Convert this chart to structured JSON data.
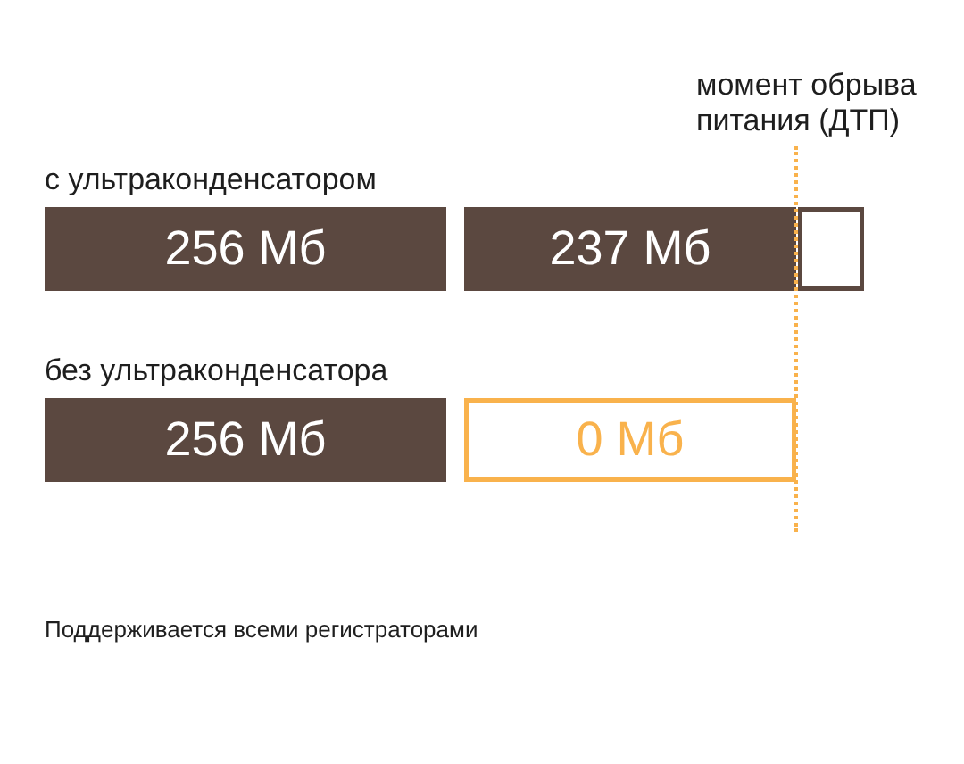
{
  "chart_data": {
    "type": "other",
    "categories": [
      "с ультраконденсатором",
      "без ультраконденсатора"
    ],
    "series": [
      {
        "color": "#5b4840",
        "values": [
          256,
          256
        ],
        "value_labels": [
          "256 Мб",
          "256 Мб"
        ]
      },
      {
        "colors": [
          "#5b4840",
          "#f9b24c"
        ],
        "values": [
          237,
          0
        ],
        "value_labels": [
          "237 Мб",
          "0 Мб"
        ]
      },
      {
        "colors": [
          "#5b4840",
          null
        ],
        "values": [
          null,
          null
        ]
      }
    ],
    "annotations": [
      "момент обрыва питания (ДТП)",
      "Поддерживается всеми регистраторами"
    ]
  }
}
